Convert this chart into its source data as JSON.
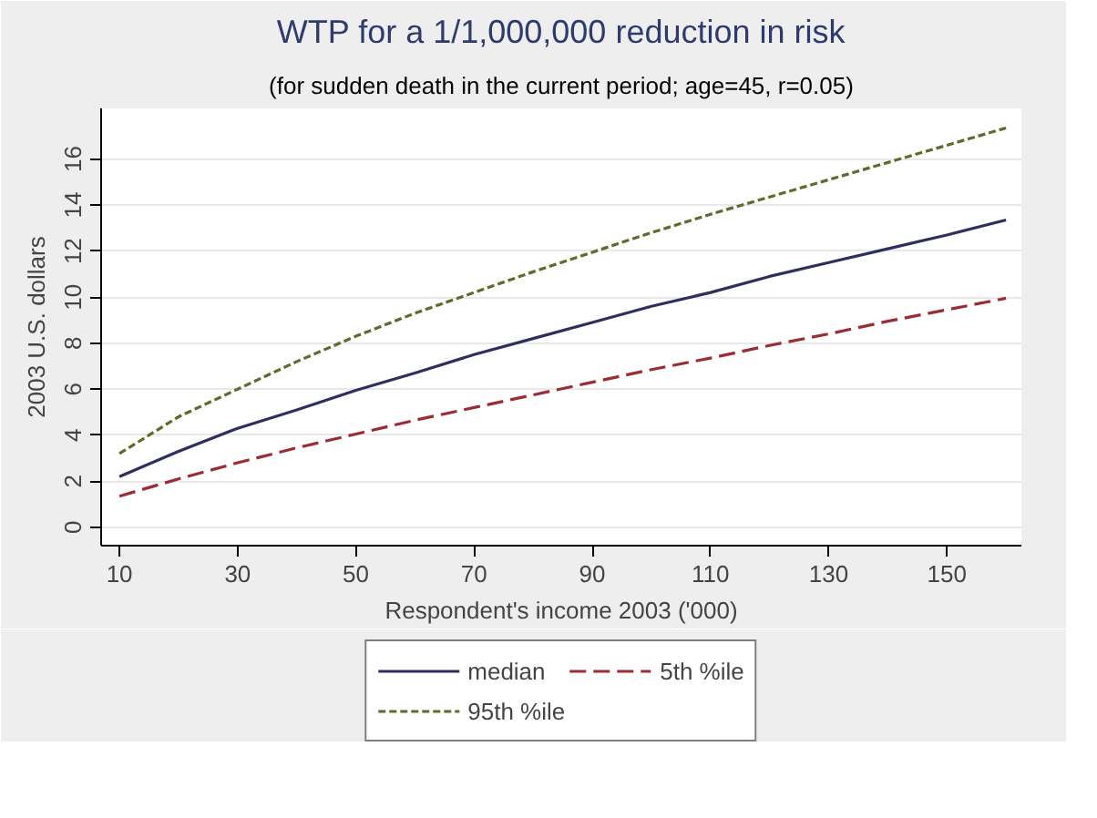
{
  "chart_data": {
    "type": "line",
    "title": "WTP for a 1/1,000,000 reduction in risk",
    "subtitle": "(for sudden death in the current period; age=45, r=0.05)",
    "xlabel": "Respondent's income 2003 ('000)",
    "ylabel": "2003 U.S. dollars",
    "x": [
      10,
      20,
      30,
      40,
      50,
      60,
      70,
      80,
      90,
      100,
      110,
      120,
      130,
      140,
      150,
      160
    ],
    "series": [
      {
        "name": "median",
        "color": "#2e2f5e",
        "line_style": "solid",
        "values": [
          2.2,
          3.3,
          4.3,
          5.1,
          5.95,
          6.7,
          7.5,
          8.2,
          8.9,
          9.6,
          10.2,
          10.9,
          11.5,
          12.1,
          12.7,
          13.35
        ]
      },
      {
        "name": "5th %ile",
        "color": "#9c2b33",
        "line_style": "longdash",
        "values": [
          1.35,
          2.1,
          2.8,
          3.45,
          4.05,
          4.65,
          5.2,
          5.75,
          6.3,
          6.85,
          7.35,
          7.9,
          8.4,
          8.95,
          9.45,
          9.95
        ]
      },
      {
        "name": "95th %ile",
        "color": "#5e6b2a",
        "line_style": "dashed",
        "values": [
          3.2,
          4.8,
          6.0,
          7.2,
          8.3,
          9.3,
          10.2,
          11.1,
          11.95,
          12.8,
          13.6,
          14.35,
          15.1,
          15.85,
          16.6,
          17.35
        ]
      }
    ],
    "xlim": [
      6.9,
      162.6
    ],
    "ylim": [
      -0.8,
      18.2
    ],
    "xticks": [
      10,
      30,
      50,
      70,
      90,
      110,
      130,
      150
    ],
    "yticks": [
      0,
      2,
      4,
      6,
      8,
      10,
      12,
      14,
      16
    ],
    "grid": "y",
    "legend": "bottom",
    "marker": "none"
  }
}
